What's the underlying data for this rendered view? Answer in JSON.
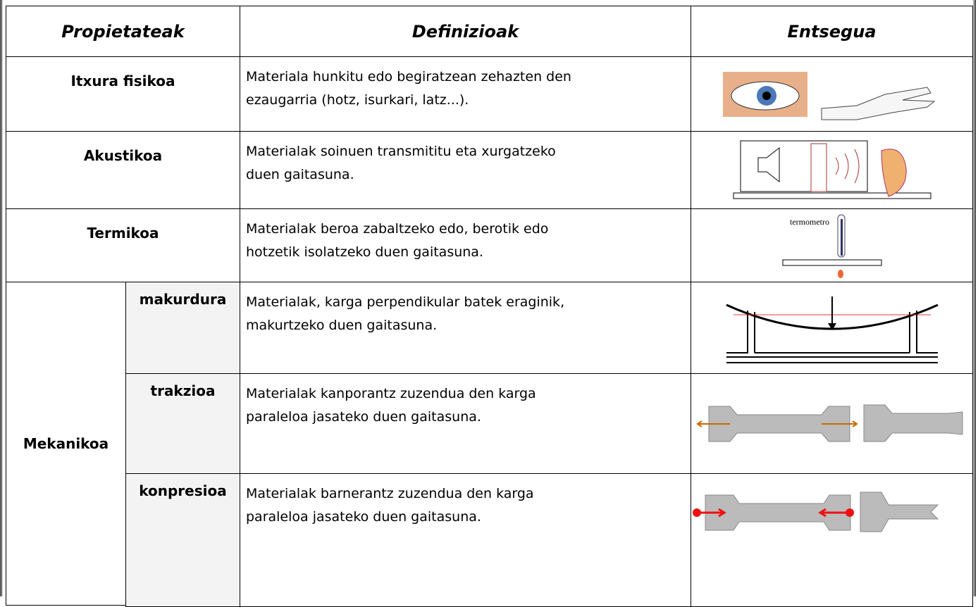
{
  "table": {
    "header": [
      "Propietateak",
      "Definizioak",
      "Entsegua"
    ],
    "rows": [
      {
        "property": "Itxura fisikoa",
        "definition": [
          "Materiala hunkitu edo begiratzean zehazten den",
          "ezaugarria (hotz, isurkari, latz...)."
        ]
      },
      {
        "property": "Akustikoa",
        "definition": [
          "Materialak soinuen transmititu eta xurgatzeko",
          "duen gaitasuna."
        ]
      },
      {
        "property": "Termikoa",
        "definition": [
          "Materialak beroa zabaltzeko edo, berotik edo",
          "hotzetik isolatzeko duen gaitasuna."
        ],
        "image_label": "termometro"
      }
    ],
    "mekanikoa": {
      "property": "Mekanikoa",
      "subrows": [
        {
          "name": "makurdura",
          "definition": [
            "Materialak, karga perpendikular batek eraginik,",
            "makurtzeko duen gaitasuna."
          ]
        },
        {
          "name": "trakzioa",
          "definition": [
            "Materialak kanporantz zuzendua den karga",
            "paraleloa jasateko duen gaitasuna."
          ]
        },
        {
          "name": "konpresioa",
          "definition": [
            "Materialak barnerantz zuzendua den karga",
            "paraleloa jasateko duen gaitasuna."
          ]
        }
      ]
    }
  }
}
